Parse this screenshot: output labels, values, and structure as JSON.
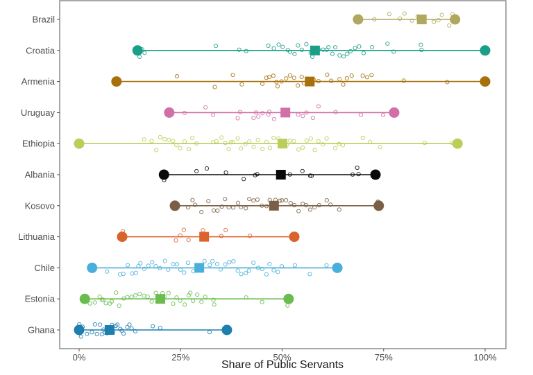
{
  "chart_data": {
    "type": "scatter",
    "subtype": "dot-range with jittered points",
    "title": "",
    "xlabel": "Share of Public Servants",
    "ylabel": "",
    "xlim": [
      0,
      100
    ],
    "x_ticks": [
      0,
      25,
      50,
      75,
      100
    ],
    "x_tick_labels": [
      "0%",
      "25%",
      "50%",
      "75%",
      "100%"
    ],
    "grid": false,
    "legend": "none",
    "marker_legend": {
      "circle_filled_large": "minimum / maximum",
      "square_filled": "median",
      "circle_open_small": "individual observations"
    },
    "categories": [
      "Brazil",
      "Croatia",
      "Armenia",
      "Uruguay",
      "Ethiopia",
      "Albania",
      "Kosovo",
      "Lithuania",
      "Chile",
      "Estonia",
      "Ghana"
    ],
    "series": [
      {
        "name": "Brazil",
        "color": "#b0a85e",
        "min": 68.7,
        "median": 84.4,
        "max": 92.6,
        "points": [
          72.7,
          76.5,
          79,
          80,
          82,
          83.3,
          84,
          85,
          87.5,
          88.5,
          89.5,
          91,
          92
        ]
      },
      {
        "name": "Croatia",
        "color": "#1a9e87",
        "min": 14.4,
        "median": 58.1,
        "max": 100,
        "points": [
          15,
          15.5,
          16.2,
          33.5,
          39.5,
          41.2,
          46.5,
          48,
          49,
          50,
          51.5,
          52,
          53,
          54,
          55,
          56,
          57,
          57.5,
          59,
          60,
          61,
          61.5,
          62.5,
          63,
          64,
          65,
          66,
          67,
          68,
          69,
          70,
          72,
          76,
          77.5,
          84,
          84.2
        ]
      },
      {
        "name": "Armenia",
        "color": "#a6700a",
        "min": 9.2,
        "median": 56.8,
        "max": 100,
        "points": [
          9.5,
          24,
          33.5,
          38,
          40,
          45,
          46,
          47,
          48,
          48.5,
          49,
          50,
          51,
          52,
          53,
          54,
          55,
          55.5,
          58,
          59,
          61,
          62,
          64,
          65,
          66,
          67,
          70,
          71,
          72,
          80,
          90.5
        ]
      },
      {
        "name": "Uruguay",
        "color": "#d070a6",
        "min": 22.2,
        "median": 50.8,
        "max": 77.6,
        "points": [
          26,
          31,
          33,
          39,
          39.5,
          43,
          43.5,
          44,
          45,
          46.5,
          47,
          48,
          54,
          55,
          56,
          57.5,
          59,
          63,
          69.5,
          75
        ]
      },
      {
        "name": "Ethiopia",
        "color": "#b9cf5a",
        "min": 0,
        "median": 50.1,
        "max": 93.2,
        "points": [
          16,
          18,
          19,
          20,
          21,
          22,
          23,
          24,
          25,
          26,
          27,
          28,
          29,
          33,
          34,
          35,
          36,
          37,
          37.5,
          38,
          39,
          40,
          41,
          42,
          43,
          44,
          45,
          46,
          47,
          48,
          49,
          51,
          52,
          53,
          54,
          55,
          56,
          57,
          58,
          59,
          60,
          61,
          63,
          64,
          65,
          70,
          71.5,
          74,
          85,
          92
        ]
      },
      {
        "name": "Albania",
        "color": "#0a0a0a",
        "min": 20.9,
        "median": 49.7,
        "max": 73.0,
        "points": [
          21,
          29,
          31.5,
          36,
          40.5,
          43.5,
          44,
          52,
          55,
          57,
          57.2,
          67.5,
          68.5,
          69
        ]
      },
      {
        "name": "Kosovo",
        "color": "#7a5f45",
        "min": 23.6,
        "median": 48.0,
        "max": 73.8,
        "points": [
          27,
          28,
          28.5,
          30,
          32,
          33,
          34,
          35,
          36,
          37,
          38,
          39,
          40,
          41,
          42,
          43,
          44,
          45,
          46,
          47,
          48.5,
          49.5,
          50,
          51,
          52,
          53,
          54,
          55,
          56,
          57,
          58,
          59,
          61,
          62,
          64,
          73.5
        ]
      },
      {
        "name": "Lithuania",
        "color": "#d9632b",
        "min": 10.6,
        "median": 30.8,
        "max": 53.0,
        "points": [
          10.8,
          24,
          25,
          25.8,
          27,
          30.5,
          35,
          36,
          42
        ]
      },
      {
        "name": "Chile",
        "color": "#4aaedc",
        "min": 3.2,
        "median": 29.6,
        "max": 63.6,
        "points": [
          7,
          10,
          11,
          12,
          13,
          14,
          14.5,
          15,
          16,
          17,
          18,
          19,
          20,
          21,
          22,
          23,
          24,
          25,
          26,
          27,
          28,
          30,
          31,
          32,
          33,
          34,
          35,
          36,
          37,
          38,
          39,
          40,
          41,
          42,
          43,
          44,
          45,
          46,
          47,
          48,
          49,
          50,
          53,
          57,
          61
        ]
      },
      {
        "name": "Estonia",
        "color": "#6abc4f",
        "min": 1.4,
        "median": 20.0,
        "max": 51.6,
        "points": [
          2.5,
          4,
          5,
          5.5,
          6,
          6.5,
          7.5,
          8,
          9,
          10,
          11,
          12,
          13,
          14,
          15,
          16,
          17,
          18,
          19,
          20.5,
          21,
          22,
          23,
          24,
          25,
          26,
          27,
          27.5,
          28,
          29,
          30,
          31,
          33,
          33.2,
          41,
          45,
          51.5
        ]
      },
      {
        "name": "Ghana",
        "color": "#1d7eb0",
        "min": 0,
        "median": 7.5,
        "max": 36.4,
        "points": [
          0,
          0.3,
          1,
          2,
          3,
          4,
          4.5,
          5,
          5.5,
          6,
          6.5,
          7,
          8,
          8.5,
          9,
          9.5,
          10,
          10.5,
          11,
          12,
          12.5,
          13,
          14,
          18,
          20,
          32
        ]
      }
    ]
  }
}
